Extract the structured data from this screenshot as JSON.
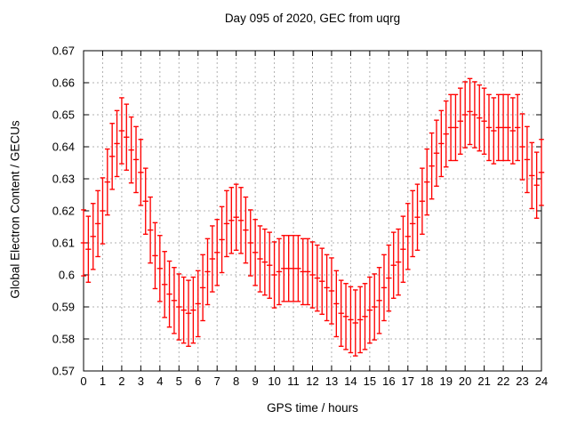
{
  "title": "Day 095 of 2020, GEC from uqrg",
  "x_axis": {
    "label": "GPS time / hours",
    "min": 0,
    "max": 24,
    "tick_step": 1,
    "tick_labels": [
      "0",
      "1",
      "2",
      "3",
      "4",
      "5",
      "6",
      "7",
      "8",
      "9",
      "10",
      "11",
      "12",
      "13",
      "14",
      "15",
      "16",
      "17",
      "18",
      "19",
      "20",
      "21",
      "22",
      "23",
      "24"
    ]
  },
  "y_axis": {
    "label": "Global Electron Content / GECUs",
    "min": 0.57,
    "max": 0.67,
    "tick_step": 0.01,
    "tick_labels": [
      "0.57",
      "0.58",
      "0.59",
      "0.6",
      "0.61",
      "0.62",
      "0.63",
      "0.64",
      "0.65",
      "0.66",
      "0.67"
    ]
  },
  "colors": {
    "series": "#ff0000",
    "grid": "#b0b0b0",
    "frame": "#000000",
    "background": "#ffffff",
    "text": "#000000"
  },
  "chart_data": {
    "type": "scatter",
    "style": "yerrorbars",
    "title": "Day 095 of 2020, GEC from uqrg",
    "xlabel": "GPS time / hours",
    "ylabel": "Global Electron Content / GECUs",
    "xlim": [
      0,
      24
    ],
    "ylim": [
      0.57,
      0.67
    ],
    "grid": true,
    "x_step_hours": 0.25,
    "yerr": 0.0103,
    "x": [
      0,
      0.25,
      0.5,
      0.75,
      1,
      1.25,
      1.5,
      1.75,
      2,
      2.25,
      2.5,
      2.75,
      3,
      3.25,
      3.5,
      3.75,
      4,
      4.25,
      4.5,
      4.75,
      5,
      5.25,
      5.5,
      5.75,
      6,
      6.25,
      6.5,
      6.75,
      7,
      7.25,
      7.5,
      7.75,
      8,
      8.25,
      8.5,
      8.75,
      9,
      9.25,
      9.5,
      9.75,
      10,
      10.25,
      10.5,
      10.75,
      11,
      11.25,
      11.5,
      11.75,
      12,
      12.25,
      12.5,
      12.75,
      13,
      13.25,
      13.5,
      13.75,
      14,
      14.25,
      14.5,
      14.75,
      15,
      15.25,
      15.5,
      15.75,
      16,
      16.25,
      16.5,
      16.75,
      17,
      17.25,
      17.5,
      17.75,
      18,
      18.25,
      18.5,
      18.75,
      19,
      19.25,
      19.5,
      19.75,
      20,
      20.25,
      20.5,
      20.75,
      21,
      21.25,
      21.5,
      21.75,
      22,
      22.25,
      22.5,
      22.75,
      23,
      23.25,
      23.5,
      23.75,
      24
    ],
    "y": [
      0.61,
      0.608,
      0.612,
      0.616,
      0.62,
      0.629,
      0.637,
      0.641,
      0.645,
      0.643,
      0.639,
      0.636,
      0.632,
      0.623,
      0.614,
      0.606,
      0.602,
      0.597,
      0.594,
      0.592,
      0.59,
      0.589,
      0.588,
      0.589,
      0.591,
      0.596,
      0.601,
      0.605,
      0.607,
      0.611,
      0.616,
      0.617,
      0.618,
      0.617,
      0.614,
      0.61,
      0.607,
      0.605,
      0.604,
      0.603,
      0.6,
      0.601,
      0.602,
      0.602,
      0.602,
      0.602,
      0.601,
      0.601,
      0.6,
      0.599,
      0.598,
      0.596,
      0.595,
      0.591,
      0.588,
      0.587,
      0.586,
      0.585,
      0.586,
      0.587,
      0.589,
      0.59,
      0.592,
      0.596,
      0.599,
      0.603,
      0.604,
      0.608,
      0.612,
      0.616,
      0.618,
      0.623,
      0.629,
      0.634,
      0.638,
      0.641,
      0.644,
      0.646,
      0.646,
      0.648,
      0.65,
      0.651,
      0.65,
      0.649,
      0.648,
      0.646,
      0.645,
      0.646,
      0.646,
      0.646,
      0.645,
      0.646,
      0.64,
      0.636,
      0.631,
      0.628,
      0.632
    ]
  }
}
